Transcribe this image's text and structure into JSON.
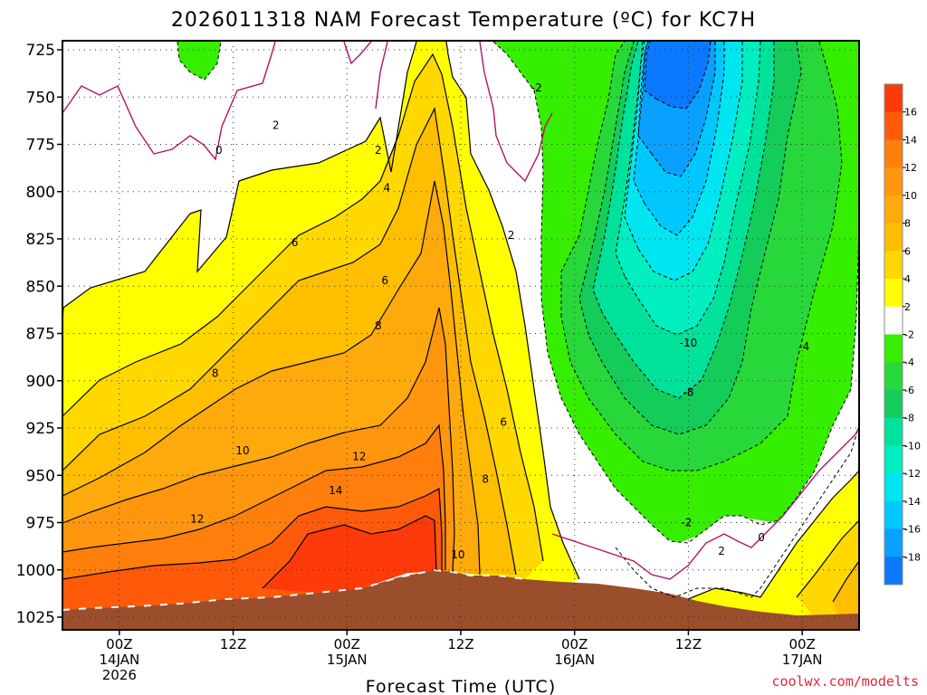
{
  "chart_data": {
    "type": "heatmap",
    "title": "2026011318 NAM Forecast Temperature (ºC) for KC7H",
    "xlabel": "Forecast Time (UTC)",
    "ylabel": "",
    "x_ticks": [
      {
        "hour": 6,
        "lines": [
          "00Z",
          "14JAN",
          "2026"
        ]
      },
      {
        "hour": 18,
        "lines": [
          "12Z",
          "",
          ""
        ]
      },
      {
        "hour": 30,
        "lines": [
          "00Z",
          "15JAN",
          ""
        ]
      },
      {
        "hour": 42,
        "lines": [
          "12Z",
          "",
          ""
        ]
      },
      {
        "hour": 54,
        "lines": [
          "00Z",
          "16JAN",
          ""
        ]
      },
      {
        "hour": 66,
        "lines": [
          "12Z",
          "",
          ""
        ]
      },
      {
        "hour": 78,
        "lines": [
          "00Z",
          "17JAN",
          ""
        ]
      }
    ],
    "xlim": [
      0,
      84
    ],
    "y_ticks": [
      "725",
      "750",
      "775",
      "800",
      "825",
      "850",
      "875",
      "900",
      "925",
      "950",
      "975",
      "1000",
      "1025"
    ],
    "ylim": [
      1025,
      725
    ],
    "colorbar": {
      "labels": [
        "16",
        "14",
        "12",
        "10",
        "8",
        "6",
        "4",
        "2",
        "-2",
        "-4",
        "-6",
        "-8",
        "-10",
        "-12",
        "-14",
        "-16",
        "-18"
      ],
      "colors": [
        "#ff3a0a",
        "#ff5a0a",
        "#ff7e0c",
        "#ff960e",
        "#ffaa0c",
        "#ffbe00",
        "#ffd800",
        "#ffff00",
        "#ffffff",
        "#36ee00",
        "#28d83a",
        "#14cc5a",
        "#00e29a",
        "#00eec0",
        "#00e6f0",
        "#00c8ff",
        "#0aa0ff",
        "#0a78ff"
      ]
    },
    "contour_labels": [
      {
        "text": "-2",
        "hour": 50.0,
        "p": 745
      },
      {
        "text": "0",
        "hour": 16.5,
        "p": 778
      },
      {
        "text": "2",
        "hour": 22.5,
        "p": 765
      },
      {
        "text": "2",
        "hour": 33.3,
        "p": 778
      },
      {
        "text": "2",
        "hour": 47.3,
        "p": 823
      },
      {
        "text": "4",
        "hour": 34.2,
        "p": 798
      },
      {
        "text": "6",
        "hour": 24.5,
        "p": 827
      },
      {
        "text": "6",
        "hour": 34.0,
        "p": 847
      },
      {
        "text": "8",
        "hour": 33.3,
        "p": 871
      },
      {
        "text": "8",
        "hour": 16.1,
        "p": 896
      },
      {
        "text": "6",
        "hour": 46.5,
        "p": 922
      },
      {
        "text": "8",
        "hour": 44.6,
        "p": 952
      },
      {
        "text": "10",
        "hour": 19.0,
        "p": 937
      },
      {
        "text": "12",
        "hour": 31.3,
        "p": 940
      },
      {
        "text": "14",
        "hour": 28.8,
        "p": 958
      },
      {
        "text": "12",
        "hour": 14.2,
        "p": 973
      },
      {
        "text": "10",
        "hour": 41.7,
        "p": 992
      },
      {
        "text": "-10",
        "hour": 66.0,
        "p": 880
      },
      {
        "text": "-8",
        "hour": 66.0,
        "p": 906
      },
      {
        "text": "-4",
        "hour": 78.2,
        "p": 882
      },
      {
        "text": "-2",
        "hour": 65.8,
        "p": 975
      },
      {
        "text": "0",
        "hour": 73.7,
        "p": 983
      },
      {
        "text": "2",
        "hour": 69.5,
        "p": 990
      }
    ]
  },
  "credit": "coolwx.com/modelts",
  "colors": {
    "terrain": "#9a4e2c",
    "zero_isotherm": "#b0136a",
    "background": "#ffffff"
  }
}
